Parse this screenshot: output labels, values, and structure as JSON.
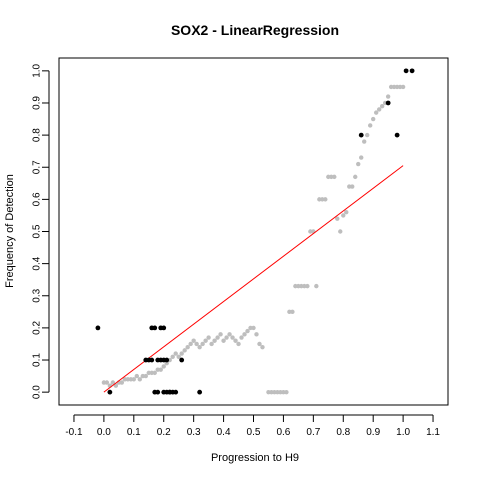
{
  "chart_data": {
    "type": "scatter",
    "title": "SOX2 - LinearRegression",
    "xlabel": "Progression to H9",
    "ylabel": "Frequency of Detection",
    "xlim": [
      -0.15,
      1.15
    ],
    "ylim": [
      -0.04,
      1.04
    ],
    "x_ticks": [
      -0.1,
      0.0,
      0.1,
      0.2,
      0.3,
      0.4,
      0.5,
      0.6,
      0.7,
      0.8,
      0.9,
      1.0,
      1.1
    ],
    "x_tick_labels": [
      "-0.1",
      "0.0",
      "0.1",
      "0.2",
      "0.3",
      "0.4",
      "0.5",
      "0.6",
      "0.7",
      "0.8",
      "0.9",
      "1.0",
      "1.1"
    ],
    "y_ticks": [
      0.0,
      0.1,
      0.2,
      0.3,
      0.4,
      0.5,
      0.6,
      0.7,
      0.8,
      0.9,
      1.0
    ],
    "y_tick_labels": [
      "0.0",
      "0.1",
      "0.2",
      "0.3",
      "0.4",
      "0.5",
      "0.6",
      "0.7",
      "0.8",
      "0.9",
      "1.0"
    ],
    "grid": false,
    "colors": {
      "observed": "#000000",
      "fitted": "#bebebe",
      "regression": "#ff0000"
    },
    "series": [
      {
        "role": "observed",
        "x": [
          -0.02,
          0.02,
          0.14,
          0.15,
          0.16,
          0.16,
          0.17,
          0.17,
          0.18,
          0.18,
          0.19,
          0.19,
          0.2,
          0.2,
          0.2,
          0.21,
          0.21,
          0.22,
          0.22,
          0.23,
          0.24,
          0.26,
          0.32,
          0.86,
          0.95,
          0.98,
          1.01,
          1.03
        ],
        "y": [
          0.2,
          0.0,
          0.1,
          0.1,
          0.2,
          0.1,
          0.2,
          0.0,
          0.1,
          0.0,
          0.2,
          0.1,
          0.2,
          0.1,
          0.0,
          0.1,
          0.0,
          0.0,
          0.0,
          0.0,
          0.0,
          0.1,
          0.0,
          0.8,
          0.9,
          0.8,
          1.0,
          1.0
        ]
      },
      {
        "role": "fitted",
        "x": [
          0.0,
          0.01,
          0.02,
          0.03,
          0.04,
          0.05,
          0.06,
          0.07,
          0.08,
          0.09,
          0.1,
          0.11,
          0.12,
          0.13,
          0.14,
          0.15,
          0.16,
          0.17,
          0.18,
          0.19,
          0.2,
          0.21,
          0.22,
          0.23,
          0.24,
          0.25,
          0.26,
          0.27,
          0.28,
          0.29,
          0.3,
          0.31,
          0.32,
          0.33,
          0.34,
          0.35,
          0.36,
          0.37,
          0.38,
          0.39,
          0.4,
          0.41,
          0.42,
          0.43,
          0.44,
          0.45,
          0.46,
          0.47,
          0.48,
          0.49,
          0.5,
          0.51,
          0.52,
          0.53,
          0.55,
          0.56,
          0.57,
          0.58,
          0.59,
          0.6,
          0.61,
          0.62,
          0.63,
          0.64,
          0.65,
          0.66,
          0.67,
          0.68,
          0.69,
          0.7,
          0.71,
          0.72,
          0.73,
          0.74,
          0.75,
          0.76,
          0.77,
          0.78,
          0.79,
          0.8,
          0.81,
          0.82,
          0.83,
          0.84,
          0.85,
          0.86,
          0.87,
          0.88,
          0.89,
          0.9,
          0.91,
          0.92,
          0.93,
          0.94,
          0.95,
          0.96,
          0.97,
          0.98,
          0.99,
          1.0
        ],
        "y": [
          0.03,
          0.03,
          0.02,
          0.03,
          0.02,
          0.03,
          0.03,
          0.04,
          0.04,
          0.04,
          0.04,
          0.05,
          0.04,
          0.05,
          0.05,
          0.06,
          0.06,
          0.06,
          0.07,
          0.07,
          0.08,
          0.09,
          0.1,
          0.11,
          0.12,
          0.11,
          0.12,
          0.13,
          0.14,
          0.15,
          0.16,
          0.15,
          0.14,
          0.15,
          0.16,
          0.17,
          0.15,
          0.16,
          0.17,
          0.18,
          0.16,
          0.17,
          0.18,
          0.17,
          0.16,
          0.15,
          0.17,
          0.18,
          0.19,
          0.2,
          0.2,
          0.18,
          0.15,
          0.14,
          0.0,
          0.0,
          0.0,
          0.0,
          0.0,
          0.0,
          0.0,
          0.25,
          0.25,
          0.33,
          0.33,
          0.33,
          0.33,
          0.33,
          0.5,
          0.5,
          0.33,
          0.6,
          0.6,
          0.6,
          0.67,
          0.67,
          0.67,
          0.54,
          0.5,
          0.55,
          0.56,
          0.64,
          0.64,
          0.67,
          0.71,
          0.73,
          0.78,
          0.8,
          0.83,
          0.85,
          0.87,
          0.88,
          0.89,
          0.9,
          0.92,
          0.95,
          0.95,
          0.95,
          0.95,
          0.95
        ]
      },
      {
        "role": "regression",
        "x": [
          0.0,
          1.0
        ],
        "y": [
          0.0,
          0.705
        ]
      }
    ]
  }
}
